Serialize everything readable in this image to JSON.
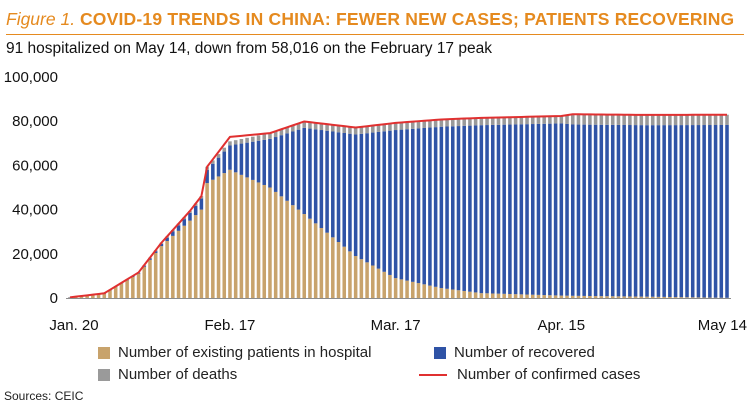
{
  "figure": {
    "label": "Figure 1.",
    "title": "COVID-19 TRENDS IN CHINA: FEWER NEW CASES; PATIENTS RECOVERING",
    "subtitle": "91 hospitalized on May 14, down from 58,016 on the February 17 peak",
    "source": "Sources: CEIC"
  },
  "colors": {
    "accent": "#e58a1f",
    "hospital": "#c8a36c",
    "recovered": "#2f53a6",
    "deaths": "#9a9a9a",
    "confirmed": "#e03030"
  },
  "legend": [
    {
      "key": "hospital",
      "label": "Number of existing patients in hospital"
    },
    {
      "key": "recovered",
      "label": "Number of recovered"
    },
    {
      "key": "deaths",
      "label": "Number of deaths"
    },
    {
      "key": "confirmed",
      "label": "Number of confirmed cases"
    }
  ],
  "chart_data": {
    "type": "bar",
    "stacked": true,
    "start_date": "2020-01-20",
    "end_date": "2020-05-14",
    "x_ticks": [
      {
        "date": "2020-01-20",
        "label": "Jan. 20"
      },
      {
        "date": "2020-02-17",
        "label": "Feb. 17"
      },
      {
        "date": "2020-03-17",
        "label": "Mar. 17"
      },
      {
        "date": "2020-04-15",
        "label": "Apr. 15"
      },
      {
        "date": "2020-05-14",
        "label": "May 14"
      }
    ],
    "y_ticks": [
      0,
      20000,
      40000,
      60000,
      80000,
      100000
    ],
    "y_tick_labels": [
      "0",
      "20,000",
      "40,000",
      "60,000",
      "80,000",
      "100,000"
    ],
    "ylim": [
      0,
      100000
    ],
    "grid": false,
    "legend_position": "bottom",
    "series_order": [
      "hospital",
      "recovered",
      "deaths"
    ],
    "line_series": "confirmed",
    "dates": [
      "2020-01-20",
      "2020-01-26",
      "2020-02-01",
      "2020-02-05",
      "2020-02-10",
      "2020-02-12",
      "2020-02-13",
      "2020-02-17",
      "2020-02-24",
      "2020-03-01",
      "2020-03-10",
      "2020-03-17",
      "2020-03-25",
      "2020-04-01",
      "2020-04-15",
      "2020-04-17",
      "2020-04-30",
      "2020-05-14"
    ],
    "hospital": [
      250,
      2000,
      11000,
      23500,
      35000,
      40000,
      52000,
      58016,
      50000,
      38000,
      19000,
      9000,
      4500,
      2200,
      1100,
      1000,
      600,
      91
    ],
    "recovered": [
      25,
      50,
      300,
      1000,
      3500,
      5000,
      6000,
      11000,
      22000,
      39000,
      55000,
      67000,
      73000,
      76000,
      77900,
      77500,
      77600,
      78200
    ],
    "deaths": [
      6,
      80,
      260,
      490,
      900,
      1115,
      1370,
      1870,
      2600,
      2870,
      3140,
      3230,
      3280,
      3310,
      3340,
      4640,
      4640,
      4640
    ],
    "confirmed": [
      291,
      2130,
      11560,
      24990,
      39400,
      46115,
      59370,
      72886,
      74600,
      79870,
      77140,
      79230,
      80780,
      81510,
      82340,
      83140,
      82840,
      82931
    ]
  }
}
